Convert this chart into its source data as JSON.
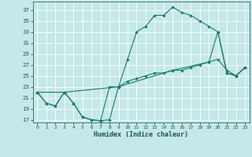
{
  "xlabel": "Humidex (Indice chaleur)",
  "bg_color": "#c5e8e8",
  "grid_color": "#ffffff",
  "line_color": "#1a7a6a",
  "xlim": [
    -0.5,
    23.5
  ],
  "ylim": [
    16.5,
    38.5
  ],
  "yticks": [
    17,
    19,
    21,
    23,
    25,
    27,
    29,
    31,
    33,
    35,
    37
  ],
  "xticks": [
    0,
    1,
    2,
    3,
    4,
    5,
    6,
    7,
    8,
    9,
    10,
    11,
    12,
    13,
    14,
    15,
    16,
    17,
    18,
    19,
    20,
    21,
    22,
    23
  ],
  "line1_x": [
    0,
    1,
    2,
    3,
    4,
    5,
    6,
    7,
    8,
    9,
    10,
    11,
    12,
    13,
    14,
    15,
    16,
    17,
    18,
    19,
    20,
    21,
    22,
    23
  ],
  "line1_y": [
    22,
    20,
    19.5,
    22,
    20,
    17.5,
    17,
    16.8,
    17,
    23,
    28,
    33,
    34,
    36,
    36,
    37.5,
    36.5,
    36,
    35,
    34,
    33,
    25.5,
    25,
    26.5
  ],
  "line2_x": [
    0,
    1,
    2,
    3,
    4,
    5,
    6,
    7,
    8,
    9,
    10,
    11,
    12,
    13,
    14,
    15,
    16,
    17,
    18,
    19,
    20,
    21,
    22,
    23
  ],
  "line2_y": [
    22,
    20,
    19.5,
    22,
    20,
    17.5,
    17,
    16.8,
    23,
    23,
    24,
    24.5,
    25,
    25.5,
    25.5,
    26,
    26,
    26.5,
    27,
    27.5,
    28,
    26,
    25,
    26.5
  ],
  "line3_x": [
    0,
    3,
    9,
    15,
    19,
    20,
    21,
    22,
    23
  ],
  "line3_y": [
    22,
    22,
    23,
    26,
    27.5,
    33,
    25.5,
    25,
    26.5
  ]
}
